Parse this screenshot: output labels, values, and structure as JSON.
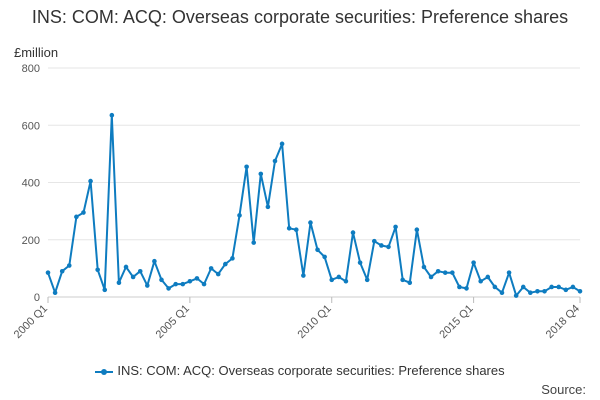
{
  "chart_data": {
    "type": "line",
    "title": "INS: COM: ACQ: Overseas corporate securities: Preference shares",
    "ylabel": "£million",
    "ylim": [
      0,
      800
    ],
    "yticks": [
      0,
      200,
      400,
      600,
      800
    ],
    "xticks": [
      "2000 Q1",
      "2005 Q1",
      "2010 Q1",
      "2015 Q1",
      "2018 Q4"
    ],
    "grid": true,
    "legend_position": "bottom",
    "series": [
      {
        "name": "INS: COM: ACQ: Overseas corporate securities: Preference shares",
        "color": "#0e7cc0",
        "x": [
          "2000 Q1",
          "2000 Q2",
          "2000 Q3",
          "2000 Q4",
          "2001 Q1",
          "2001 Q2",
          "2001 Q3",
          "2001 Q4",
          "2002 Q1",
          "2002 Q2",
          "2002 Q3",
          "2002 Q4",
          "2003 Q1",
          "2003 Q2",
          "2003 Q3",
          "2003 Q4",
          "2004 Q1",
          "2004 Q2",
          "2004 Q3",
          "2004 Q4",
          "2005 Q1",
          "2005 Q2",
          "2005 Q3",
          "2005 Q4",
          "2006 Q1",
          "2006 Q2",
          "2006 Q3",
          "2006 Q4",
          "2007 Q1",
          "2007 Q2",
          "2007 Q3",
          "2007 Q4",
          "2008 Q1",
          "2008 Q2",
          "2008 Q3",
          "2008 Q4",
          "2009 Q1",
          "2009 Q2",
          "2009 Q3",
          "2009 Q4",
          "2010 Q1",
          "2010 Q2",
          "2010 Q3",
          "2010 Q4",
          "2011 Q1",
          "2011 Q2",
          "2011 Q3",
          "2011 Q4",
          "2012 Q1",
          "2012 Q2",
          "2012 Q3",
          "2012 Q4",
          "2013 Q1",
          "2013 Q2",
          "2013 Q3",
          "2013 Q4",
          "2014 Q1",
          "2014 Q2",
          "2014 Q3",
          "2014 Q4",
          "2015 Q1",
          "2015 Q2",
          "2015 Q3",
          "2015 Q4",
          "2016 Q1",
          "2016 Q2",
          "2016 Q3",
          "2016 Q4",
          "2017 Q1",
          "2017 Q2",
          "2017 Q3",
          "2017 Q4",
          "2018 Q1",
          "2018 Q2",
          "2018 Q3",
          "2018 Q4"
        ],
        "values": [
          85,
          15,
          90,
          110,
          280,
          295,
          405,
          95,
          25,
          635,
          50,
          105,
          70,
          90,
          40,
          125,
          60,
          30,
          45,
          45,
          55,
          65,
          45,
          100,
          80,
          115,
          135,
          285,
          455,
          190,
          430,
          315,
          475,
          535,
          240,
          235,
          75,
          260,
          165,
          140,
          60,
          70,
          55,
          225,
          120,
          60,
          195,
          180,
          175,
          245,
          60,
          50,
          235,
          105,
          70,
          90,
          85,
          85,
          35,
          30,
          120,
          55,
          70,
          35,
          15,
          85,
          5,
          35,
          15,
          20,
          20,
          35,
          35,
          25,
          35,
          20
        ]
      }
    ]
  },
  "source_label": "Source:"
}
